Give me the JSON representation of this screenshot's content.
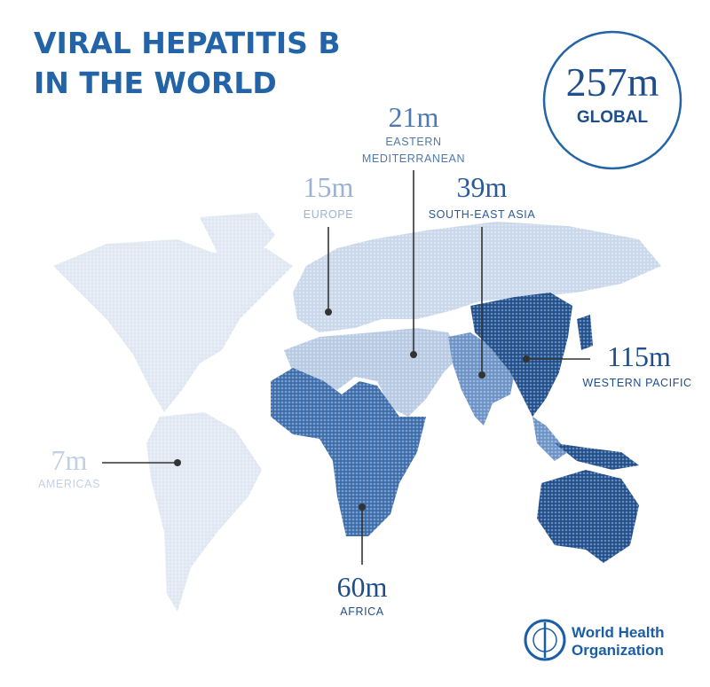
{
  "title": {
    "line1": "VIRAL HEPATITIS B",
    "line2": "IN THE WORLD"
  },
  "global": {
    "value": "257m",
    "label": "GLOBAL"
  },
  "regions": [
    {
      "value": "21m",
      "name": [
        "EASTERN",
        "MEDITERRANEAN"
      ]
    },
    {
      "value": "15m",
      "name": [
        "EUROPE"
      ]
    },
    {
      "value": "39m",
      "name": [
        "SOUTH-EAST ASIA"
      ]
    },
    {
      "value": "115m",
      "name": [
        "WESTERN PACIFIC"
      ]
    },
    {
      "value": "7m",
      "name": [
        "AMERICAS"
      ]
    },
    {
      "value": "60m",
      "name": [
        "AFRICA"
      ]
    }
  ],
  "logo": {
    "line1": "World Health",
    "line2": "Organization"
  }
}
